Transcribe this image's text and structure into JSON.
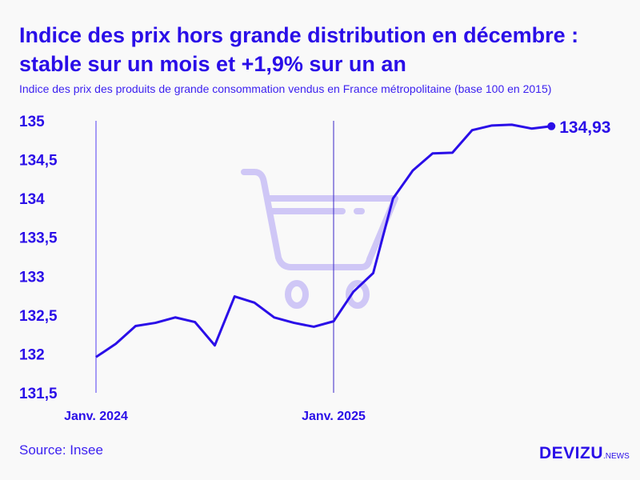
{
  "title": "Indice des prix hors grande distribution en décembre : stable sur un mois et +1,9% sur un an",
  "subtitle": "Indice des prix des produits de grande consommation vendus en France métropolitaine (base 100 en 2015)",
  "source": "Source: Insee",
  "logo": {
    "main": "DEVIZU",
    "suffix": ".NEWS"
  },
  "colors": {
    "accent": "#2a0ee8",
    "cart": "#cfc7f6",
    "background": "#f9f9f9"
  },
  "chart_data": {
    "type": "line",
    "title": "Indice des prix hors grande distribution en décembre : stable sur un mois et +1,9% sur un an",
    "xlabel": "",
    "ylabel": "",
    "x": [
      "2024-01",
      "2024-02",
      "2024-03",
      "2024-04",
      "2024-05",
      "2024-06",
      "2024-07",
      "2024-08",
      "2024-09",
      "2024-10",
      "2024-11",
      "2024-12",
      "2025-01",
      "2025-02",
      "2025-03",
      "2025-04",
      "2025-05",
      "2025-06",
      "2025-07",
      "2025-08",
      "2025-09",
      "2025-10",
      "2025-11",
      "2025-12"
    ],
    "series": [
      {
        "name": "Indice",
        "values": [
          131.96,
          132.13,
          132.36,
          132.4,
          132.47,
          132.41,
          132.11,
          132.74,
          132.66,
          132.47,
          132.4,
          132.35,
          132.42,
          132.8,
          133.04,
          134.0,
          134.36,
          134.58,
          134.59,
          134.88,
          134.94,
          134.95,
          134.9,
          134.93
        ]
      }
    ],
    "ylim": [
      131.5,
      135
    ],
    "yticks": [
      131.5,
      132,
      132.5,
      133,
      133.5,
      134,
      134.5,
      135
    ],
    "ytick_labels": [
      "131,5",
      "132",
      "132,5",
      "133",
      "133,5",
      "134",
      "134,5",
      "135"
    ],
    "xtick_labels": [
      {
        "index": 0,
        "label": "Janv. 2024"
      },
      {
        "index": 12,
        "label": "Janv. 2025"
      }
    ],
    "end_label": "134,93",
    "grid": false
  }
}
